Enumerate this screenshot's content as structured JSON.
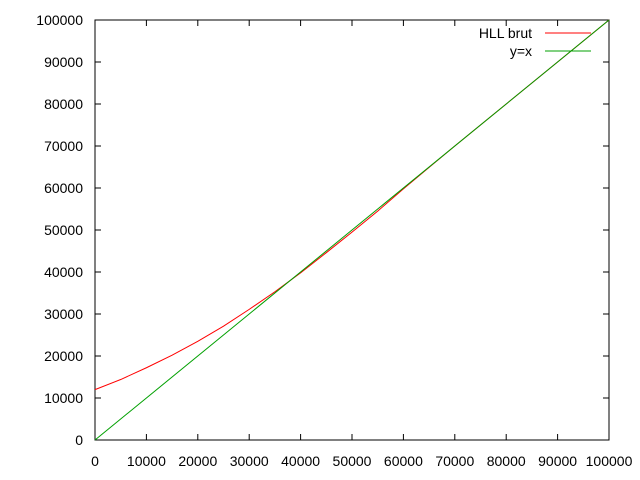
{
  "chart_data": {
    "type": "line",
    "title": "",
    "xlabel": "",
    "ylabel": "",
    "xlim": [
      0,
      100000
    ],
    "ylim": [
      0,
      100000
    ],
    "grid": false,
    "legend_position": "top-right",
    "x_ticks": [
      {
        "value": 0,
        "label": "0"
      },
      {
        "value": 10000,
        "label": "10000"
      },
      {
        "value": 20000,
        "label": "20000"
      },
      {
        "value": 30000,
        "label": "30000"
      },
      {
        "value": 40000,
        "label": "40000"
      },
      {
        "value": 50000,
        "label": "50000"
      },
      {
        "value": 60000,
        "label": "60000"
      },
      {
        "value": 70000,
        "label": "70000"
      },
      {
        "value": 80000,
        "label": "80000"
      },
      {
        "value": 90000,
        "label": "90000"
      },
      {
        "value": 100000,
        "label": "100000"
      }
    ],
    "y_ticks": [
      {
        "value": 0,
        "label": "0"
      },
      {
        "value": 10000,
        "label": "10000"
      },
      {
        "value": 20000,
        "label": "20000"
      },
      {
        "value": 30000,
        "label": "30000"
      },
      {
        "value": 40000,
        "label": "40000"
      },
      {
        "value": 50000,
        "label": "50000"
      },
      {
        "value": 60000,
        "label": "60000"
      },
      {
        "value": 70000,
        "label": "70000"
      },
      {
        "value": 80000,
        "label": "80000"
      },
      {
        "value": 90000,
        "label": "90000"
      },
      {
        "value": 100000,
        "label": "100000"
      }
    ],
    "series": [
      {
        "name": "HLL brut",
        "color": "#ff0000",
        "x": [
          0,
          5000,
          10000,
          15000,
          20000,
          25000,
          30000,
          35000,
          40000,
          45000,
          50000,
          55000,
          60000,
          65000,
          70000,
          75000,
          80000,
          85000,
          90000,
          95000,
          100000
        ],
        "y": [
          12000,
          14400,
          17200,
          20200,
          23500,
          27100,
          31100,
          35300,
          39800,
          44600,
          49500,
          54500,
          59800,
          64900,
          70000,
          75000,
          80000,
          85000,
          90000,
          95000,
          100000
        ]
      },
      {
        "name": "y=x",
        "color": "#00a000",
        "x": [
          0,
          100000
        ],
        "y": [
          0,
          100000
        ]
      }
    ]
  }
}
